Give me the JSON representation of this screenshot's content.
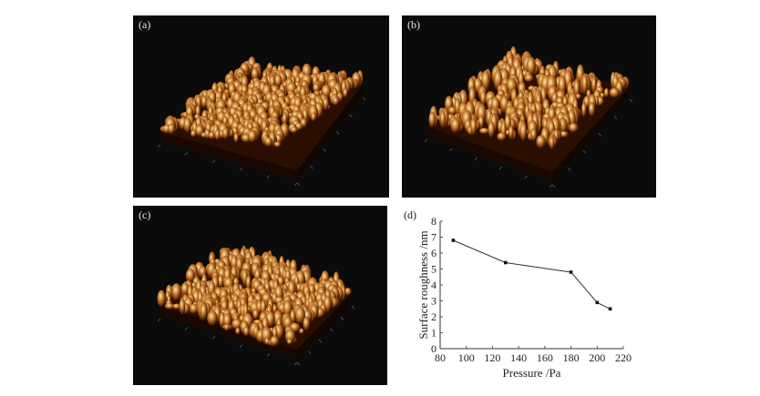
{
  "panels": [
    {
      "id": "a",
      "label": "(a)"
    },
    {
      "id": "b",
      "label": "(b)"
    },
    {
      "id": "c",
      "label": "(c)"
    }
  ],
  "chart_data": {
    "type": "line",
    "panel_label": "(d)",
    "xlabel": "Pressure /Pa",
    "ylabel": "Surface roughness /nm",
    "xlim": [
      80,
      220
    ],
    "ylim": [
      0,
      8
    ],
    "xticks": [
      80,
      100,
      120,
      140,
      160,
      180,
      200,
      220
    ],
    "yticks": [
      0,
      1,
      2,
      3,
      4,
      5,
      6,
      7,
      8
    ],
    "x": [
      90,
      130,
      180,
      200,
      210
    ],
    "series": [
      {
        "values": [
          6.8,
          5.4,
          4.8,
          2.9,
          2.5
        ]
      }
    ],
    "grid": false,
    "colors": {
      "line": "#333333",
      "marker": "#111111",
      "axis": "#333333"
    }
  },
  "colors": {
    "afm_dark": "#2a0f00",
    "afm_mid": "#b2601a",
    "afm_bright": "#ffe8a0",
    "panel_bg": "#0b0b0b"
  }
}
